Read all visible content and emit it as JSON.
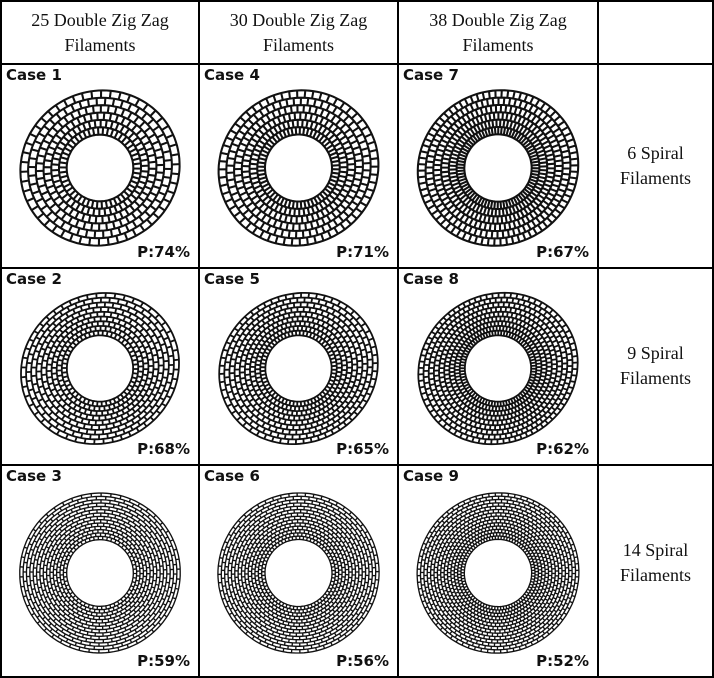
{
  "columns": [
    {
      "line1": "25 Double Zig Zag",
      "line2": "Filaments",
      "zigzag": 25
    },
    {
      "line1": "30 Double Zig Zag",
      "line2": "Filaments",
      "zigzag": 30
    },
    {
      "line1": "38 Double Zig Zag",
      "line2": "Filaments",
      "zigzag": 38
    }
  ],
  "rows": [
    {
      "line1": "6 Spiral",
      "line2": "Filaments",
      "spirals": 6
    },
    {
      "line1": "9 Spiral",
      "line2": "Filaments",
      "spirals": 9
    },
    {
      "line1": "14 Spiral",
      "line2": "Filaments",
      "spirals": 14
    }
  ],
  "cases": [
    [
      {
        "label": "Case 1",
        "porosity": "P:74%"
      },
      {
        "label": "Case 4",
        "porosity": "P:71%"
      },
      {
        "label": "Case 7",
        "porosity": "P:67%"
      }
    ],
    [
      {
        "label": "Case 2",
        "porosity": "P:68%"
      },
      {
        "label": "Case 5",
        "porosity": "P:65%"
      },
      {
        "label": "Case 8",
        "porosity": "P:62%"
      }
    ],
    [
      {
        "label": "Case 3",
        "porosity": "P:59%"
      },
      {
        "label": "Case 6",
        "porosity": "P:56%"
      },
      {
        "label": "Case 9",
        "porosity": "P:52%"
      }
    ]
  ],
  "colors": {
    "grid_line": "#000000",
    "filament": "#111111",
    "background": "#ffffff"
  }
}
